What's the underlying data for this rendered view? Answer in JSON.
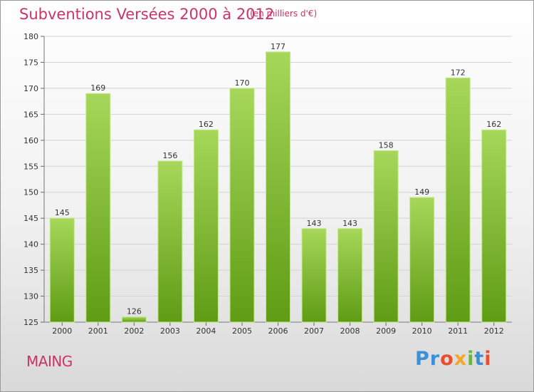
{
  "header": {
    "title": "Subventions Versées 2000 à 2012",
    "unit": "(en milliers d'€)"
  },
  "footer": {
    "city": "MAING",
    "logo": "Proxiti",
    "logo_letters": [
      {
        "ch": "P",
        "color": "#3d8fd6"
      },
      {
        "ch": "r",
        "color": "#3d8fd6"
      },
      {
        "ch": "o",
        "color": "#e94f2f"
      },
      {
        "ch": "x",
        "color": "#f5a623"
      },
      {
        "ch": "i",
        "color": "#6db33f"
      },
      {
        "ch": "t",
        "color": "#3d8fd6"
      },
      {
        "ch": "i",
        "color": "#e94f2f"
      }
    ]
  },
  "colors": {
    "bar_top": "#a6d75a",
    "bar_bottom": "#5f9c14",
    "bar_edge": "#c4e88c",
    "title": "#cc3366",
    "grid": "#d3d3d3"
  },
  "chart_data": {
    "type": "bar",
    "categories": [
      "2000",
      "2001",
      "2002",
      "2003",
      "2004",
      "2005",
      "2006",
      "2007",
      "2008",
      "2009",
      "2010",
      "2011",
      "2012"
    ],
    "values": [
      145,
      169,
      126,
      156,
      162,
      170,
      177,
      143,
      143,
      158,
      149,
      172,
      162
    ],
    "data_labels": [
      "145",
      "169",
      "126",
      "156",
      "162",
      "170",
      "177",
      "143",
      "143",
      "158",
      "149",
      "172",
      "162"
    ],
    "y_ticks": [
      125,
      130,
      135,
      140,
      145,
      150,
      155,
      160,
      165,
      170,
      175,
      180
    ],
    "ylim": [
      125,
      180
    ],
    "grid": true,
    "legend": "none"
  }
}
